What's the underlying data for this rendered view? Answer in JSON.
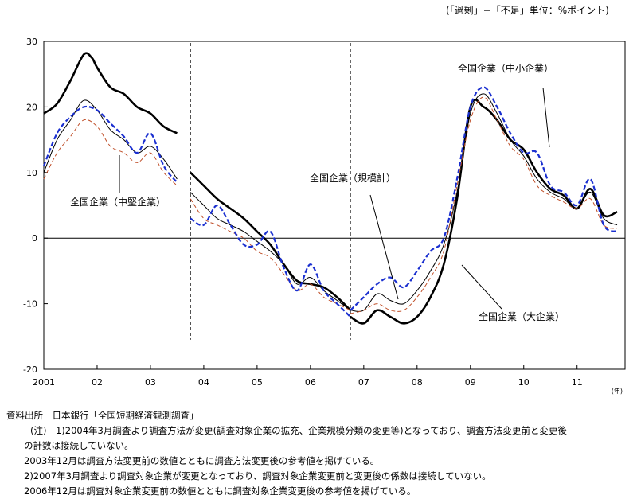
{
  "unit_note": "(「過剰」−「不足」単位：%ポイント)",
  "source_line": "資料出所　日本銀行「全国短期経済観測調査」",
  "notes": [
    "(注)　1)2004年3月調査より調査方法が変更(調査対象企業の拡充、企業規模分類の変更等)となっており、調査方法変更前と変更後",
    "の計数は接続していない。",
    "2003年12月は調査方法変更前の数値とともに調査方法変更後の参考値を掲げている。",
    "2)2007年3月調査より調査対象企業が変更となっており、調査対象企業変更前と変更後の係数は接続していない。",
    "2006年12月は調査対象企業変更前の数値とともに調査対象企業変更後の参考値を掲げている。"
  ],
  "chart_data": {
    "type": "line",
    "xlabel": "(年)",
    "ylim": [
      -20,
      30
    ],
    "xlim": [
      2001,
      2011.8
    ],
    "y_ticks": [
      -20,
      -10,
      0,
      10,
      20,
      30
    ],
    "x_ticks": [
      {
        "value": 2001,
        "label": "2001"
      },
      {
        "value": 2002,
        "label": "02"
      },
      {
        "value": 2003,
        "label": "03"
      },
      {
        "value": 2004,
        "label": "04"
      },
      {
        "value": 2005,
        "label": "05"
      },
      {
        "value": 2006,
        "label": "06"
      },
      {
        "value": 2007,
        "label": "07"
      },
      {
        "value": 2008,
        "label": "08"
      },
      {
        "value": 2009,
        "label": "09"
      },
      {
        "value": 2010,
        "label": "10"
      },
      {
        "value": 2011,
        "label": "11"
      }
    ],
    "break_lines": [
      2003.75,
      2006.75
    ],
    "annotations": [
      {
        "text": "全国企業（中小企業）",
        "series": 3
      },
      {
        "text": "全国企業（中堅企業）",
        "series": 2
      },
      {
        "text": "全国企業（規模計）",
        "series": 1
      },
      {
        "text": "全国企業（大企業）",
        "series": 0
      }
    ],
    "series": [
      {
        "name": "全国企業（大企業）",
        "color": "#000000",
        "style": "thick",
        "segments": [
          [
            [
              2001,
              19
            ],
            [
              2001.25,
              20.5
            ],
            [
              2001.5,
              24
            ],
            [
              2001.75,
              28
            ],
            [
              2001.9,
              27.5
            ],
            [
              2002.0,
              26
            ],
            [
              2002.25,
              23
            ],
            [
              2002.5,
              22
            ],
            [
              2002.75,
              20
            ],
            [
              2003.0,
              19
            ],
            [
              2003.25,
              17
            ],
            [
              2003.5,
              16
            ]
          ],
          [
            [
              2003.75,
              10
            ],
            [
              2004.0,
              8
            ],
            [
              2004.25,
              6
            ],
            [
              2004.5,
              4.5
            ],
            [
              2004.75,
              3
            ],
            [
              2005.0,
              1
            ],
            [
              2005.25,
              -1
            ],
            [
              2005.5,
              -4
            ],
            [
              2005.75,
              -6.5
            ],
            [
              2006.0,
              -7
            ],
            [
              2006.25,
              -7.5
            ],
            [
              2006.5,
              -9
            ],
            [
              2006.75,
              -11
            ]
          ],
          [
            [
              2006.75,
              -12
            ],
            [
              2007.0,
              -13
            ],
            [
              2007.25,
              -11
            ],
            [
              2007.5,
              -12
            ],
            [
              2007.75,
              -13
            ],
            [
              2008.0,
              -12
            ],
            [
              2008.25,
              -9
            ],
            [
              2008.5,
              -4
            ],
            [
              2008.75,
              6
            ],
            [
              2009.0,
              20
            ],
            [
              2009.25,
              20
            ],
            [
              2009.5,
              18
            ],
            [
              2009.75,
              15
            ],
            [
              2010.0,
              13.5
            ],
            [
              2010.25,
              10
            ],
            [
              2010.5,
              7.5
            ],
            [
              2010.75,
              6.5
            ],
            [
              2011.0,
              4.5
            ],
            [
              2011.25,
              7.5
            ],
            [
              2011.5,
              3.5
            ],
            [
              2011.75,
              4
            ]
          ]
        ]
      },
      {
        "name": "全国企業（規模計）",
        "color": "#000000",
        "style": "thin",
        "segments": [
          [
            [
              2001,
              10
            ],
            [
              2001.25,
              15
            ],
            [
              2001.5,
              18
            ],
            [
              2001.75,
              21
            ],
            [
              2002.0,
              19.5
            ],
            [
              2002.25,
              16.5
            ],
            [
              2002.5,
              15
            ],
            [
              2002.75,
              13
            ],
            [
              2003.0,
              14
            ],
            [
              2003.25,
              12
            ],
            [
              2003.5,
              9
            ]
          ],
          [
            [
              2003.75,
              7
            ],
            [
              2004.0,
              5
            ],
            [
              2004.25,
              3
            ],
            [
              2004.5,
              2
            ],
            [
              2004.75,
              1
            ],
            [
              2005.0,
              -0.5
            ],
            [
              2005.25,
              -2
            ],
            [
              2005.5,
              -4
            ],
            [
              2005.75,
              -7
            ],
            [
              2006.0,
              -6
            ],
            [
              2006.25,
              -8
            ],
            [
              2006.5,
              -9.5
            ],
            [
              2006.75,
              -11
            ]
          ],
          [
            [
              2006.75,
              -11
            ],
            [
              2007.0,
              -11
            ],
            [
              2007.25,
              -8.5
            ],
            [
              2007.5,
              -9.5
            ],
            [
              2007.75,
              -10
            ],
            [
              2008.0,
              -8
            ],
            [
              2008.25,
              -5
            ],
            [
              2008.5,
              -1
            ],
            [
              2008.75,
              7
            ],
            [
              2009.0,
              19
            ],
            [
              2009.25,
              22
            ],
            [
              2009.5,
              19
            ],
            [
              2009.75,
              15
            ],
            [
              2010.0,
              12.5
            ],
            [
              2010.25,
              9
            ],
            [
              2010.5,
              7
            ],
            [
              2010.75,
              6
            ],
            [
              2011.0,
              4.5
            ],
            [
              2011.25,
              7
            ],
            [
              2011.5,
              3
            ],
            [
              2011.75,
              2
            ]
          ]
        ]
      },
      {
        "name": "全国企業（中堅企業）",
        "color": "#c0502a",
        "style": "dashed",
        "segments": [
          [
            [
              2001,
              9
            ],
            [
              2001.25,
              13
            ],
            [
              2001.5,
              15.5
            ],
            [
              2001.75,
              18
            ],
            [
              2002.0,
              17
            ],
            [
              2002.25,
              14
            ],
            [
              2002.5,
              13
            ],
            [
              2002.75,
              11.5
            ],
            [
              2003.0,
              13
            ],
            [
              2003.25,
              10
            ],
            [
              2003.5,
              8
            ]
          ],
          [
            [
              2003.75,
              6
            ],
            [
              2004.0,
              3
            ],
            [
              2004.25,
              2
            ],
            [
              2004.5,
              1
            ],
            [
              2004.75,
              0
            ],
            [
              2005.0,
              -2
            ],
            [
              2005.25,
              -3
            ],
            [
              2005.5,
              -5.5
            ],
            [
              2005.75,
              -8
            ],
            [
              2006.0,
              -7
            ],
            [
              2006.25,
              -9
            ],
            [
              2006.5,
              -10
            ],
            [
              2006.75,
              -11
            ]
          ],
          [
            [
              2006.75,
              -11.5
            ],
            [
              2007.0,
              -11
            ],
            [
              2007.25,
              -10
            ],
            [
              2007.5,
              -11
            ],
            [
              2007.75,
              -11
            ],
            [
              2008.0,
              -9
            ],
            [
              2008.25,
              -6
            ],
            [
              2008.5,
              -2
            ],
            [
              2008.75,
              8
            ],
            [
              2009.0,
              18
            ],
            [
              2009.25,
              21.5
            ],
            [
              2009.5,
              18
            ],
            [
              2009.75,
              14
            ],
            [
              2010.0,
              12
            ],
            [
              2010.25,
              8
            ],
            [
              2010.5,
              6.5
            ],
            [
              2010.75,
              5.5
            ],
            [
              2011.0,
              4.5
            ],
            [
              2011.25,
              6
            ],
            [
              2011.5,
              2
            ],
            [
              2011.75,
              1.5
            ]
          ]
        ]
      },
      {
        "name": "全国企業（中小企業）",
        "color": "#1a2fd0",
        "style": "dash-thick",
        "segments": [
          [
            [
              2001,
              11
            ],
            [
              2001.25,
              16
            ],
            [
              2001.5,
              18.5
            ],
            [
              2001.75,
              20
            ],
            [
              2002.0,
              19.5
            ],
            [
              2002.25,
              17.5
            ],
            [
              2002.5,
              15.5
            ],
            [
              2002.75,
              13
            ],
            [
              2003.0,
              16
            ],
            [
              2003.25,
              11
            ],
            [
              2003.5,
              8.5
            ]
          ],
          [
            [
              2003.75,
              3
            ],
            [
              2004.0,
              2
            ],
            [
              2004.25,
              5
            ],
            [
              2004.5,
              2
            ],
            [
              2004.75,
              -1
            ],
            [
              2005.0,
              -1
            ],
            [
              2005.25,
              1
            ],
            [
              2005.5,
              -4.5
            ],
            [
              2005.75,
              -8
            ],
            [
              2006.0,
              -4
            ],
            [
              2006.25,
              -8
            ],
            [
              2006.5,
              -10
            ],
            [
              2006.75,
              -12
            ]
          ],
          [
            [
              2006.75,
              -11
            ],
            [
              2007.0,
              -9
            ],
            [
              2007.25,
              -7
            ],
            [
              2007.5,
              -6
            ],
            [
              2007.75,
              -7.5
            ],
            [
              2008.0,
              -5
            ],
            [
              2008.25,
              -2
            ],
            [
              2008.5,
              0
            ],
            [
              2008.75,
              9
            ],
            [
              2009.0,
              20
            ],
            [
              2009.25,
              23
            ],
            [
              2009.5,
              20
            ],
            [
              2009.75,
              16
            ],
            [
              2010.0,
              13
            ],
            [
              2010.25,
              13
            ],
            [
              2010.5,
              8
            ],
            [
              2010.75,
              7
            ],
            [
              2011.0,
              5
            ],
            [
              2011.25,
              9
            ],
            [
              2011.5,
              2
            ],
            [
              2011.75,
              1
            ]
          ]
        ]
      }
    ]
  }
}
